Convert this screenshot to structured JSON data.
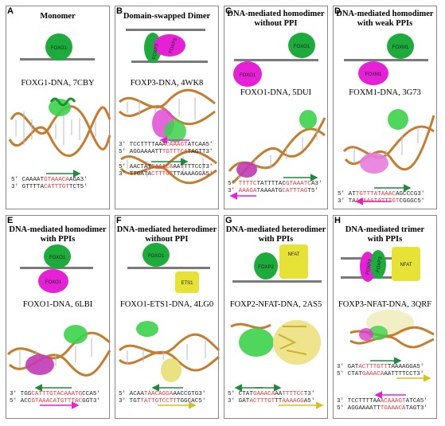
{
  "panels": [
    {
      "label": "A",
      "title_lines": [
        "Monomer"
      ],
      "name": "FOXG1-DNA, 7CBY",
      "proteins": [
        "FOXG1"
      ],
      "seq": [
        [
          "5′ CAAAAT",
          "GTAAACA",
          "AGA3′"
        ],
        [
          "3′ GTTTTA",
          "CATTTGT",
          "TCT5′"
        ]
      ]
    },
    {
      "label": "B",
      "title_lines": [
        "Domain-swapped Dimer"
      ],
      "name": "FOXP3-DNA, 4WK8",
      "proteins": [
        "FOXP3",
        "FOXP3"
      ],
      "seq": [
        [
          "3′ TCCTTTTAAA",
          "CAAAGT",
          "ATCAA5′"
        ],
        [
          "5′ AGGAAAATT",
          "TGTTTCA",
          "TAGTT3′"
        ],
        [
          "5′ AACTAT",
          "GAAACA",
          "AATTTTCCT3′"
        ],
        [
          "3′ TTGATA",
          "CTTTGT",
          "TTAAAAGGA5′"
        ]
      ]
    },
    {
      "label": "C",
      "title_lines": [
        "DNA-mediated homodimer",
        "without PPI"
      ],
      "name": "FOXO1-DNA, 5DUI",
      "proteins": [
        "FOXO1",
        "FOXO1"
      ],
      "seq": [
        [
          "5′ ",
          "TTTTC",
          "TATTTTAC",
          "GTAAATC",
          "A3′"
        ],
        [
          "3′ ",
          "AAAGA",
          "TAAAATG",
          "CATTTAG",
          "T5′"
        ]
      ]
    },
    {
      "label": "D",
      "title_lines": [
        "DNA-mediated homodimer",
        "with weak PPIs"
      ],
      "name": "FOXM1-DNA, 3G73",
      "proteins": [
        "FOXM1",
        "FOXM1"
      ],
      "seq": [
        [
          "5′ AT",
          "TGTTTATAAAC",
          "AGCCCG3′"
        ],
        [
          "3′ TA",
          "ACAAATATTTGT",
          "CGGGC5′"
        ]
      ]
    },
    {
      "label": "E",
      "title_lines": [
        "DNA-mediated homodimer",
        "with PPIs"
      ],
      "name": "FOXO1-DNA, 6LBI",
      "proteins": [
        "FOXO1",
        "FOXO1"
      ],
      "seq": [
        [
          "3′ TGG",
          "CATTTGTACAAATG",
          "CCA5′"
        ],
        [
          "5′ ACC",
          "GTAAACATGTTTAC",
          "GGT3′"
        ]
      ]
    },
    {
      "label": "F",
      "title_lines": [
        "DNA-mediated heterodimer",
        "without PPI"
      ],
      "name": "FOXO1-ETS1-DNA, 4LG0",
      "proteins": [
        "FOXO1",
        "ETS1"
      ],
      "seq": [
        [
          "5′ ACAA",
          "TAACAGGA",
          "AACCGTG3′"
        ],
        [
          "3′ TGT",
          "TATTGTCCTT",
          "TGGCAC5′"
        ]
      ]
    },
    {
      "label": "G",
      "title_lines": [
        "DNA-mediated heterodimer",
        "with PPIs"
      ],
      "name": "FOXP2-NFAT-DNA, 2AS5",
      "proteins": [
        "FOXP2",
        "NFAT"
      ],
      "seq": [
        [
          "5′ CTAT",
          "GAAACA",
          "AA",
          "TTTTCC",
          "T3′"
        ],
        [
          "3′ GAT",
          "ACTTTGT",
          "TT",
          "AAAAGG",
          "A5′"
        ]
      ]
    },
    {
      "label": "H",
      "title_lines": [
        "DNA-mediated trimer",
        "with PPIs"
      ],
      "name": "FOXP3-NFAT-DNA, 3QRF",
      "proteins": [
        "FOXP3",
        "FOXP3",
        "NFAT"
      ],
      "seq": [
        [
          "3′ GAT",
          "ACTTTGTT",
          "TAAAAGGA5′"
        ],
        [
          "5′ CTAT",
          "GAAACA",
          "AATTTTCCT3′"
        ],
        [
          "3′ TCCTTTTAA",
          "ACAAAGT",
          "ATCA5′"
        ],
        [
          "5′ AGGAAAATT",
          "TGAAACA",
          "TAGT3′"
        ]
      ]
    }
  ],
  "colors": {
    "green": "#1dac3c",
    "magenta": "#e620d6",
    "yellow": "#e6e336",
    "red": "#e8343c",
    "arrow_green": "#1e8a3a",
    "arrow_magenta": "#e620d6",
    "arrow_yellow": "#d6c21a"
  }
}
